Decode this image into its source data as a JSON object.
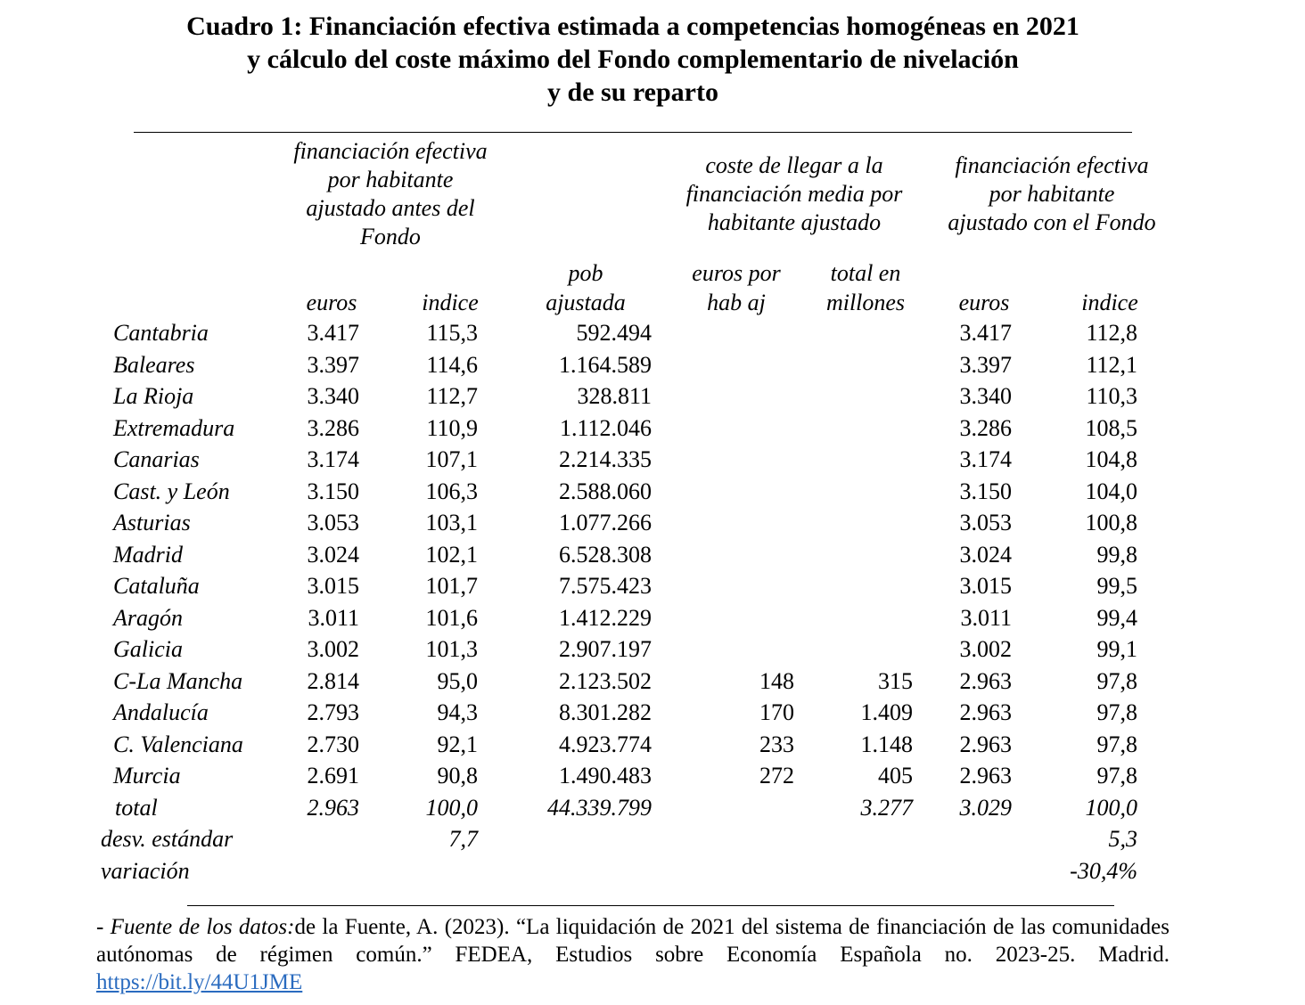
{
  "title": {
    "lines": [
      "Cuadro 1: Financiación efectiva estimada a competencias homogéneas en 2021",
      "y cálculo del coste máximo del Fondo complementario de nivelación",
      "y de su reparto"
    ]
  },
  "headers": {
    "group1": [
      "financiación efectiva",
      "por habitante",
      "ajustado antes del",
      "Fondo"
    ],
    "group2": [
      "coste de llegar a la",
      "financiación media por",
      "habitante ajustado"
    ],
    "group3": [
      "financiación efectiva",
      "por habitante",
      "ajustado con el Fondo"
    ],
    "columns": [
      [
        "euros"
      ],
      [
        "indice"
      ],
      [
        "pob",
        "ajustada"
      ],
      [
        "euros por",
        "hab aj"
      ],
      [
        "total en",
        "millones"
      ],
      [
        "euros"
      ],
      [
        "indice"
      ]
    ]
  },
  "rows": [
    {
      "region": "Cantabria",
      "cells": [
        "3.417",
        "115,3",
        "592.494",
        "",
        "",
        "3.417",
        "112,8"
      ]
    },
    {
      "region": "Baleares",
      "cells": [
        "3.397",
        "114,6",
        "1.164.589",
        "",
        "",
        "3.397",
        "112,1"
      ]
    },
    {
      "region": "La Rioja",
      "cells": [
        "3.340",
        "112,7",
        "328.811",
        "",
        "",
        "3.340",
        "110,3"
      ]
    },
    {
      "region": "Extremadura",
      "cells": [
        "3.286",
        "110,9",
        "1.112.046",
        "",
        "",
        "3.286",
        "108,5"
      ]
    },
    {
      "region": "Canarias",
      "cells": [
        "3.174",
        "107,1",
        "2.214.335",
        "",
        "",
        "3.174",
        "104,8"
      ]
    },
    {
      "region": "Cast. y León",
      "cells": [
        "3.150",
        "106,3",
        "2.588.060",
        "",
        "",
        "3.150",
        "104,0"
      ]
    },
    {
      "region": "Asturias",
      "cells": [
        "3.053",
        "103,1",
        "1.077.266",
        "",
        "",
        "3.053",
        "100,8"
      ]
    },
    {
      "region": "Madrid",
      "cells": [
        "3.024",
        "102,1",
        "6.528.308",
        "",
        "",
        "3.024",
        "99,8"
      ]
    },
    {
      "region": "Cataluña",
      "cells": [
        "3.015",
        "101,7",
        "7.575.423",
        "",
        "",
        "3.015",
        "99,5"
      ]
    },
    {
      "region": "Aragón",
      "cells": [
        "3.011",
        "101,6",
        "1.412.229",
        "",
        "",
        "3.011",
        "99,4"
      ]
    },
    {
      "region": "Galicia",
      "cells": [
        "3.002",
        "101,3",
        "2.907.197",
        "",
        "",
        "3.002",
        "99,1"
      ]
    },
    {
      "region": "C-La Mancha",
      "cells": [
        "2.814",
        "95,0",
        "2.123.502",
        "148",
        "315",
        "2.963",
        "97,8"
      ]
    },
    {
      "region": "Andalucía",
      "cells": [
        "2.793",
        "94,3",
        "8.301.282",
        "170",
        "1.409",
        "2.963",
        "97,8"
      ]
    },
    {
      "region": "C. Valenciana",
      "cells": [
        "2.730",
        "92,1",
        "4.923.774",
        "233",
        "1.148",
        "2.963",
        "97,8"
      ]
    },
    {
      "region": "Murcia",
      "cells": [
        "2.691",
        "90,8",
        "1.490.483",
        "272",
        "405",
        "2.963",
        "97,8"
      ]
    }
  ],
  "summary": [
    {
      "label": "total",
      "cells": [
        "2.963",
        "100,0",
        "44.339.799",
        "",
        "3.277",
        "3.029",
        "100,0"
      ]
    },
    {
      "label": "desv. estándar",
      "cells": [
        "",
        "7,7",
        "",
        "",
        "",
        "",
        "5,3"
      ]
    },
    {
      "label": "variación",
      "cells": [
        "",
        "",
        "",
        "",
        "",
        "",
        "-30,4%"
      ]
    }
  ],
  "footer": {
    "source_label": "- Fuente de los datos:",
    "source_text": "de la Fuente, A. (2023). “La liquidación de 2021 del sistema de financiación de las comunidades autónomas de régimen común.” FEDEA, Estudios sobre Economía Española no. 2023-25. Madrid. ",
    "link": "https://bit.ly/44U1JME",
    "link_color": "#2a6bbf"
  }
}
